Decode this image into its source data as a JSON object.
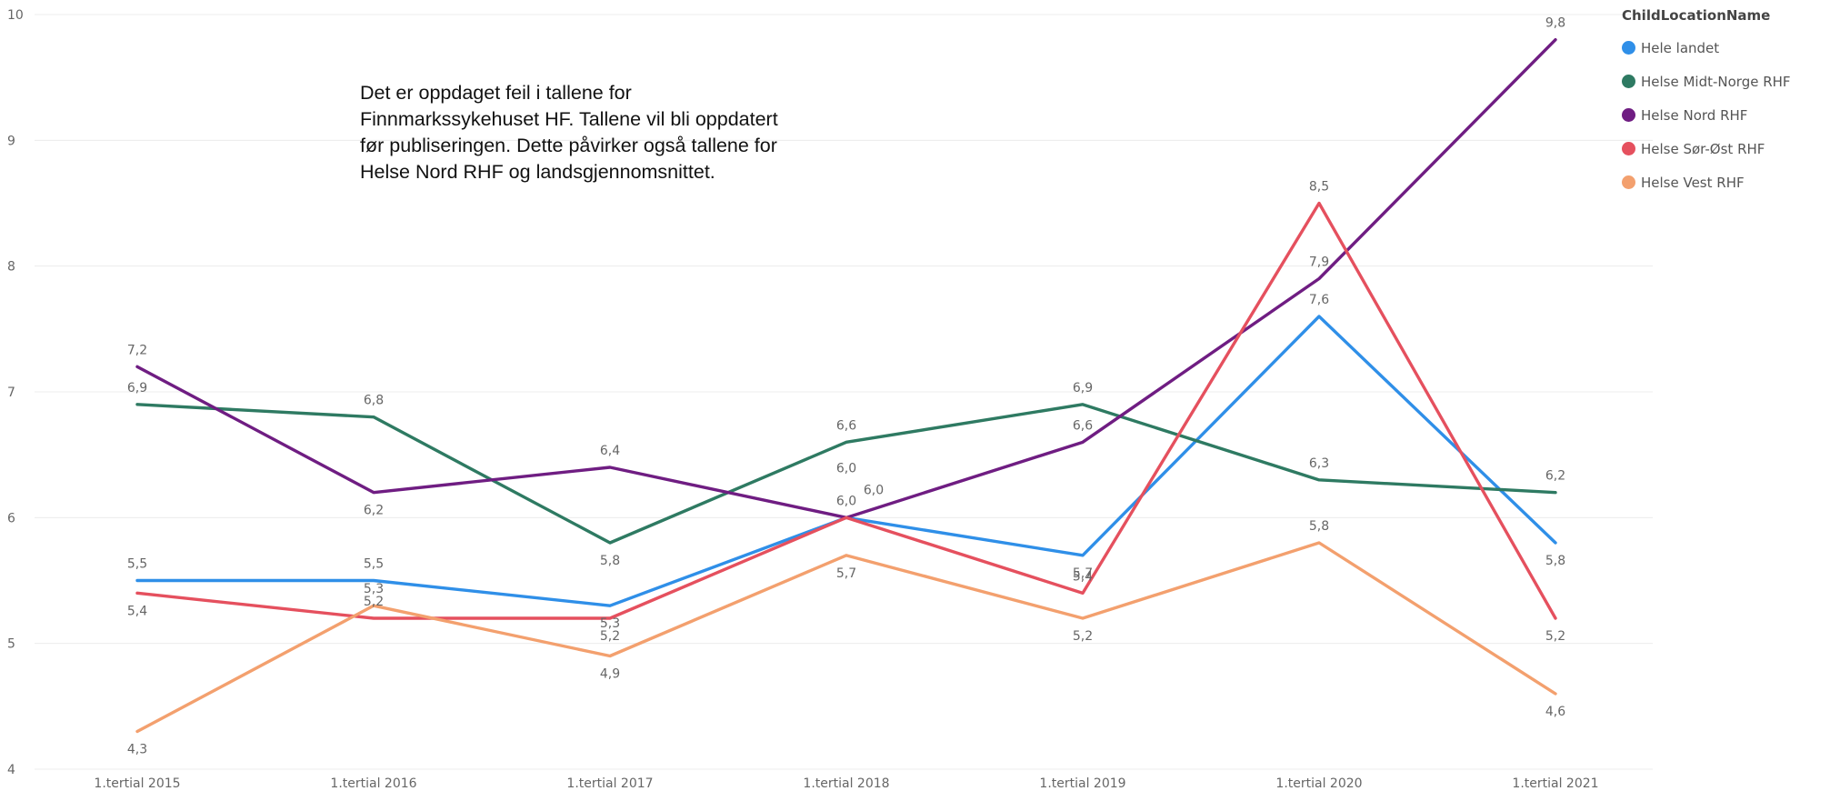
{
  "chart_data": {
    "type": "line",
    "title": "",
    "xlabel": "",
    "ylabel": "",
    "categories": [
      "1.tertial 2015",
      "1.tertial 2016",
      "1.tertial 2017",
      "1.tertial 2018",
      "1.tertial 2019",
      "1.tertial 2020",
      "1.tertial 2021"
    ],
    "ylim": [
      4,
      10
    ],
    "yticks": [
      "4",
      "5",
      "6",
      "7",
      "8",
      "9",
      "10"
    ],
    "grid": true,
    "legend": {
      "title": "ChildLocationName",
      "position": "top-right"
    },
    "series": [
      {
        "name": "Hele landet",
        "color": "#2f8fe8",
        "values": [
          5.5,
          5.5,
          5.3,
          6.0,
          5.7,
          7.6,
          5.8
        ],
        "labels": [
          "5,5",
          "5,5",
          "5,3",
          "6,0",
          "5,7",
          "7,6",
          "5,8"
        ]
      },
      {
        "name": "Helse Midt-Norge RHF",
        "color": "#2e7a62",
        "values": [
          6.9,
          6.8,
          5.8,
          6.6,
          6.9,
          6.3,
          6.2
        ],
        "labels": [
          "6,9",
          "6,8",
          "5,8",
          "6,6",
          "6,9",
          "6,3",
          "6,2"
        ]
      },
      {
        "name": "Helse Nord RHF",
        "color": "#6f1d82",
        "values": [
          7.2,
          6.2,
          6.4,
          6.0,
          6.6,
          7.9,
          9.8
        ],
        "labels": [
          "7,2",
          "6,2",
          "6,4",
          "6,0",
          "6,6",
          "7,9",
          "9,8"
        ]
      },
      {
        "name": "Helse Sør-Øst RHF",
        "color": "#e5505e",
        "values": [
          5.4,
          5.2,
          5.2,
          6.0,
          5.4,
          8.5,
          5.2
        ],
        "labels": [
          "5,4",
          "5,2",
          "5,2",
          "6,0",
          "5,4",
          "8,5",
          "5,2"
        ]
      },
      {
        "name": "Helse Vest RHF",
        "color": "#f3a06e",
        "values": [
          4.3,
          5.3,
          4.9,
          5.7,
          5.2,
          5.8,
          4.6
        ],
        "labels": [
          "4,3",
          "5,3",
          "4,9",
          "5,7",
          "5,2",
          "5,8",
          "4,6"
        ]
      }
    ],
    "annotation": [
      "Det er oppdaget feil i tallene for",
      "Finnmarkssykehuset HF. Tallene vil bli oppdatert",
      "før publiseringen. Dette påvirker også tallene for",
      "Helse Nord RHF og landsgjennomsnittet."
    ]
  }
}
